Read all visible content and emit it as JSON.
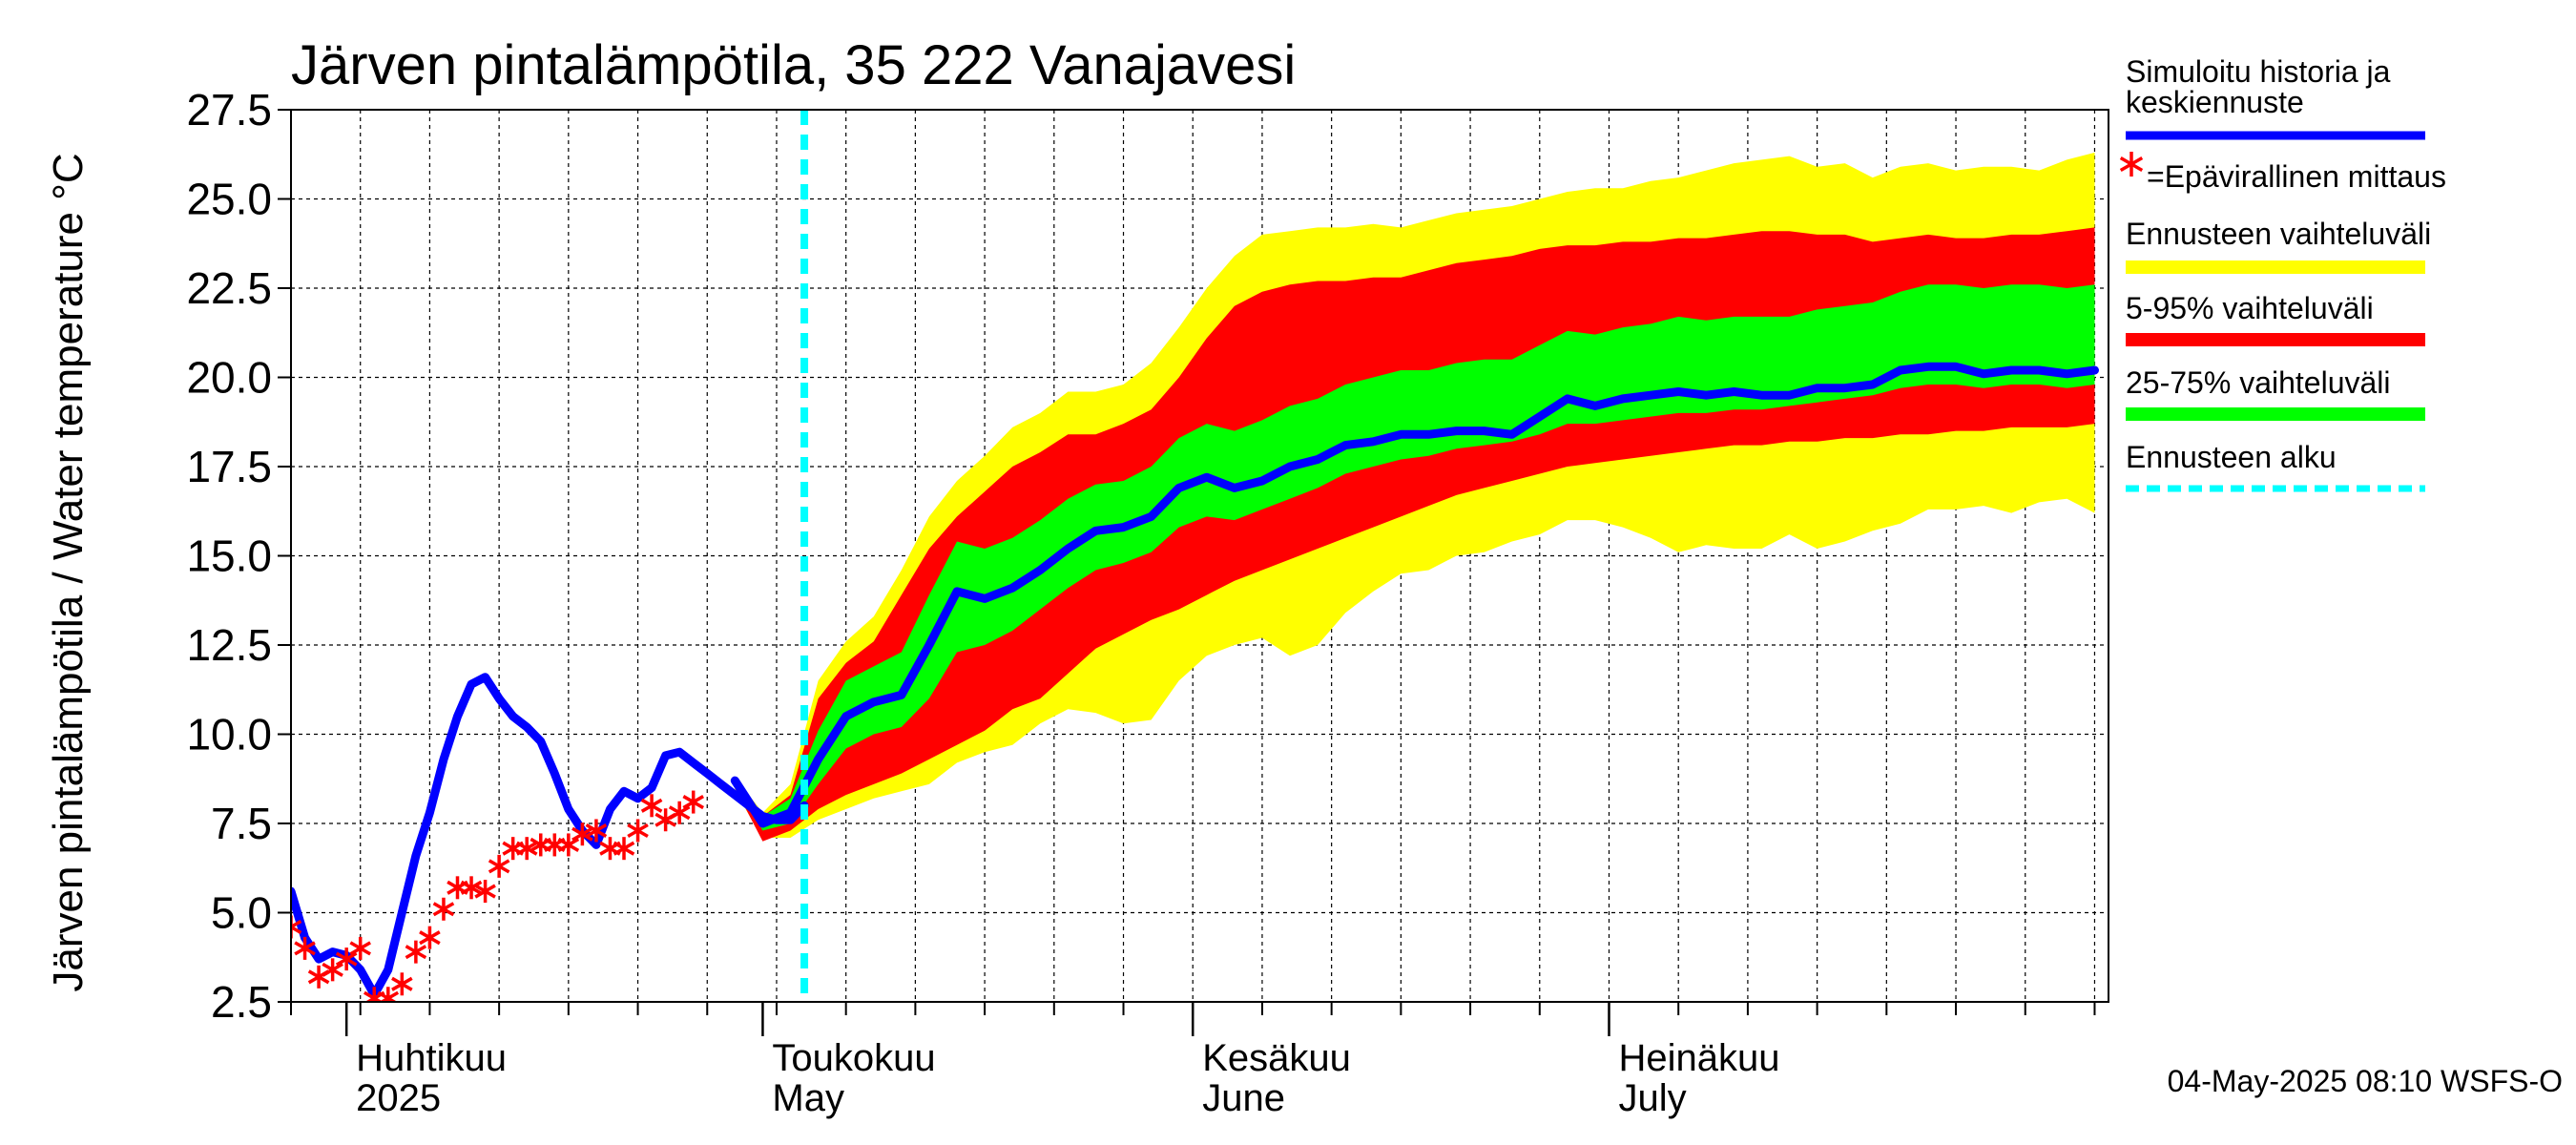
{
  "chart_data": {
    "type": "line",
    "title": "Järven pintalämpötila, 35 222 Vanajavesi",
    "ylabel": "Järven pintalämpötila / Water temperature °C",
    "ylim": [
      2.5,
      27.5
    ],
    "yticks": [
      "2.5",
      "5.0",
      "7.5",
      "10.0",
      "12.5",
      "15.0",
      "17.5",
      "20.0",
      "22.5",
      "25.0",
      "27.5"
    ],
    "xlim": [
      "2025-03-28",
      "2025-08-06"
    ],
    "grid": true,
    "forecast_start": "2025-05-04",
    "month_labels": [
      {
        "line1": "Huhtikuu",
        "line2": "2025",
        "date": "2025-04-01"
      },
      {
        "line1": "Toukokuu",
        "line2": "May",
        "date": "2025-05-01"
      },
      {
        "line1": "Kesäkuu",
        "line2": "June",
        "date": "2025-06-01"
      },
      {
        "line1": "Heinäkuu",
        "line2": "July",
        "date": "2025-07-01"
      }
    ],
    "legend": [
      {
        "label": "Simuloitu historia ja",
        "label2": "keskiennuste",
        "color": "#0000ff",
        "kind": "line"
      },
      {
        "label": "=Epävirallinen mittaus",
        "color": "#ff0000",
        "kind": "marker"
      },
      {
        "label": "Ennusteen vaihteluväli",
        "color": "#ffff00",
        "kind": "band"
      },
      {
        "label": "5-95% vaihteluväli",
        "color": "#ff0000",
        "kind": "band"
      },
      {
        "label": "25-75% vaihteluväli",
        "color": "#00ff00",
        "kind": "band"
      },
      {
        "label": "Ennusteen alku",
        "color": "#00ffff",
        "kind": "dashed"
      }
    ],
    "footer": "04-May-2025 08:10 WSFS-O",
    "colors": {
      "simulated": "#0000ff",
      "observed": "#ff0000",
      "full_range": "#ffff00",
      "p5_95": "#ff0000",
      "p25_75": "#00ff00",
      "forecast_start": "#00ffff",
      "grid": "#000000"
    },
    "series": {
      "simulated": {
        "x": [
          "2025-03-28",
          "2025-03-29",
          "2025-03-30",
          "2025-03-31",
          "2025-04-01",
          "2025-04-02",
          "2025-04-03",
          "2025-04-04",
          "2025-04-05",
          "2025-04-06",
          "2025-04-07",
          "2025-04-08",
          "2025-04-09",
          "2025-04-10",
          "2025-04-11",
          "2025-04-12",
          "2025-04-13",
          "2025-04-14",
          "2025-04-15",
          "2025-04-16",
          "2025-04-17",
          "2025-04-18",
          "2025-04-19",
          "2025-04-20",
          "2025-04-21",
          "2025-04-22",
          "2025-04-23",
          "2025-04-24",
          "2025-04-25",
          "2025-04-26",
          "2025-04-27",
          "2025-04-28",
          "2025-04-29",
          "2025-04-30",
          "2025-05-01",
          "2025-05-02",
          "2025-05-03",
          "2025-05-04"
        ],
        "y": [
          5.6,
          4.3,
          3.7,
          3.9,
          3.8,
          3.4,
          2.7,
          3.4,
          5.0,
          6.6,
          7.8,
          9.3,
          10.5,
          11.4,
          11.6,
          11.0,
          10.5,
          10.2,
          9.8,
          8.9,
          7.9,
          7.3,
          6.9,
          7.9,
          8.4,
          8.2,
          8.5,
          9.4,
          9.5,
          9.2,
          8.9,
          8.6,
          8.3,
          8.0,
          7.7,
          7.6,
          7.6,
          8.0
        ]
      },
      "observed": {
        "x": [
          "2025-03-28",
          "2025-03-29",
          "2025-03-30",
          "2025-03-31",
          "2025-04-01",
          "2025-04-02",
          "2025-04-03",
          "2025-04-04",
          "2025-04-05",
          "2025-04-06",
          "2025-04-07",
          "2025-04-08",
          "2025-04-09",
          "2025-04-10",
          "2025-04-11",
          "2025-04-12",
          "2025-04-13",
          "2025-04-14",
          "2025-04-15",
          "2025-04-16",
          "2025-04-17",
          "2025-04-18",
          "2025-04-19",
          "2025-04-20",
          "2025-04-21",
          "2025-04-22",
          "2025-04-23",
          "2025-04-24",
          "2025-04-25",
          "2025-04-26"
        ],
        "y": [
          4.6,
          4.0,
          3.2,
          3.4,
          3.7,
          4.0,
          2.6,
          2.6,
          3.0,
          3.9,
          4.3,
          5.1,
          5.7,
          5.7,
          5.6,
          6.3,
          6.8,
          6.8,
          6.9,
          6.9,
          6.9,
          7.2,
          7.3,
          6.8,
          6.8,
          7.3,
          8.0,
          7.6,
          7.8,
          8.1
        ]
      },
      "forecast_mean": {
        "x": [
          "2025-04-29",
          "2025-05-01",
          "2025-05-03",
          "2025-05-05",
          "2025-05-07",
          "2025-05-09",
          "2025-05-11",
          "2025-05-13",
          "2025-05-15",
          "2025-05-17",
          "2025-05-19",
          "2025-05-21",
          "2025-05-23",
          "2025-05-25",
          "2025-05-27",
          "2025-05-29",
          "2025-05-31",
          "2025-06-02",
          "2025-06-04",
          "2025-06-06",
          "2025-06-08",
          "2025-06-10",
          "2025-06-12",
          "2025-06-14",
          "2025-06-16",
          "2025-06-18",
          "2025-06-20",
          "2025-06-22",
          "2025-06-24",
          "2025-06-26",
          "2025-06-28",
          "2025-06-30",
          "2025-07-02",
          "2025-07-04",
          "2025-07-06",
          "2025-07-08",
          "2025-07-10",
          "2025-07-12",
          "2025-07-14",
          "2025-07-16",
          "2025-07-18",
          "2025-07-20",
          "2025-07-22",
          "2025-07-24",
          "2025-07-26",
          "2025-07-28",
          "2025-07-30",
          "2025-08-01",
          "2025-08-03",
          "2025-08-05"
        ],
        "y": [
          8.7,
          7.5,
          7.8,
          9.3,
          10.5,
          10.9,
          11.1,
          12.5,
          14.0,
          13.8,
          14.1,
          14.6,
          15.2,
          15.7,
          15.8,
          16.1,
          16.9,
          17.2,
          16.9,
          17.1,
          17.5,
          17.7,
          18.1,
          18.2,
          18.4,
          18.4,
          18.5,
          18.5,
          18.4,
          18.9,
          19.4,
          19.2,
          19.4,
          19.5,
          19.6,
          19.5,
          19.6,
          19.5,
          19.5,
          19.7,
          19.7,
          19.8,
          20.2,
          20.3,
          20.3,
          20.1,
          20.2,
          20.2,
          20.1,
          20.2
        ]
      },
      "band_full": {
        "x": [
          "2025-04-29",
          "2025-05-01",
          "2025-05-03",
          "2025-05-05",
          "2025-05-07",
          "2025-05-09",
          "2025-05-11",
          "2025-05-13",
          "2025-05-15",
          "2025-05-17",
          "2025-05-19",
          "2025-05-21",
          "2025-05-23",
          "2025-05-25",
          "2025-05-27",
          "2025-05-29",
          "2025-05-31",
          "2025-06-02",
          "2025-06-04",
          "2025-06-06",
          "2025-06-08",
          "2025-06-10",
          "2025-06-12",
          "2025-06-14",
          "2025-06-16",
          "2025-06-18",
          "2025-06-20",
          "2025-06-22",
          "2025-06-24",
          "2025-06-26",
          "2025-06-28",
          "2025-06-30",
          "2025-07-02",
          "2025-07-04",
          "2025-07-06",
          "2025-07-08",
          "2025-07-10",
          "2025-07-12",
          "2025-07-14",
          "2025-07-16",
          "2025-07-18",
          "2025-07-20",
          "2025-07-22",
          "2025-07-24",
          "2025-07-26",
          "2025-07-28",
          "2025-07-30",
          "2025-08-01",
          "2025-08-03",
          "2025-08-05"
        ],
        "low": [
          8.4,
          7.1,
          7.1,
          7.6,
          7.9,
          8.2,
          8.4,
          8.6,
          9.2,
          9.5,
          9.7,
          10.3,
          10.7,
          10.6,
          10.3,
          10.4,
          11.5,
          12.2,
          12.5,
          12.7,
          12.2,
          12.5,
          13.4,
          14.0,
          14.5,
          14.6,
          15.0,
          15.1,
          15.4,
          15.6,
          16.0,
          16.0,
          15.8,
          15.5,
          15.1,
          15.3,
          15.2,
          15.2,
          15.6,
          15.2,
          15.4,
          15.7,
          15.9,
          16.3,
          16.3,
          16.4,
          16.2,
          16.5,
          16.6,
          16.2
        ],
        "high": [
          8.8,
          7.8,
          8.6,
          11.5,
          12.6,
          13.3,
          14.6,
          16.1,
          17.1,
          17.8,
          18.6,
          19.0,
          19.6,
          19.6,
          19.8,
          20.4,
          21.4,
          22.5,
          23.4,
          24.0,
          24.1,
          24.2,
          24.2,
          24.3,
          24.2,
          24.4,
          24.6,
          24.7,
          24.8,
          25.0,
          25.2,
          25.3,
          25.3,
          25.5,
          25.6,
          25.8,
          26.0,
          26.1,
          26.2,
          25.9,
          26.0,
          25.6,
          25.9,
          26.0,
          25.8,
          25.9,
          25.9,
          25.8,
          26.1,
          26.3
        ]
      },
      "band_5_95": {
        "x": [
          "2025-04-29",
          "2025-05-01",
          "2025-05-03",
          "2025-05-05",
          "2025-05-07",
          "2025-05-09",
          "2025-05-11",
          "2025-05-13",
          "2025-05-15",
          "2025-05-17",
          "2025-05-19",
          "2025-05-21",
          "2025-05-23",
          "2025-05-25",
          "2025-05-27",
          "2025-05-29",
          "2025-05-31",
          "2025-06-02",
          "2025-06-04",
          "2025-06-06",
          "2025-06-08",
          "2025-06-10",
          "2025-06-12",
          "2025-06-14",
          "2025-06-16",
          "2025-06-18",
          "2025-06-20",
          "2025-06-22",
          "2025-06-24",
          "2025-06-26",
          "2025-06-28",
          "2025-06-30",
          "2025-07-02",
          "2025-07-04",
          "2025-07-06",
          "2025-07-08",
          "2025-07-10",
          "2025-07-12",
          "2025-07-14",
          "2025-07-16",
          "2025-07-18",
          "2025-07-20",
          "2025-07-22",
          "2025-07-24",
          "2025-07-26",
          "2025-07-28",
          "2025-07-30",
          "2025-08-01",
          "2025-08-03",
          "2025-08-05"
        ],
        "low": [
          8.5,
          7.0,
          7.3,
          7.9,
          8.3,
          8.6,
          8.9,
          9.3,
          9.7,
          10.1,
          10.7,
          11.0,
          11.7,
          12.4,
          12.8,
          13.2,
          13.5,
          13.9,
          14.3,
          14.6,
          14.9,
          15.2,
          15.5,
          15.8,
          16.1,
          16.4,
          16.7,
          16.9,
          17.1,
          17.3,
          17.5,
          17.6,
          17.7,
          17.8,
          17.9,
          18.0,
          18.1,
          18.1,
          18.2,
          18.2,
          18.3,
          18.3,
          18.4,
          18.4,
          18.5,
          18.5,
          18.6,
          18.6,
          18.6,
          18.7
        ],
        "high": [
          8.8,
          7.7,
          8.3,
          11.0,
          12.0,
          12.6,
          13.9,
          15.2,
          16.1,
          16.8,
          17.5,
          17.9,
          18.4,
          18.4,
          18.7,
          19.1,
          20.0,
          21.1,
          22.0,
          22.4,
          22.6,
          22.7,
          22.7,
          22.8,
          22.8,
          23.0,
          23.2,
          23.3,
          23.4,
          23.6,
          23.7,
          23.7,
          23.8,
          23.8,
          23.9,
          23.9,
          24.0,
          24.1,
          24.1,
          24.0,
          24.0,
          23.8,
          23.9,
          24.0,
          23.9,
          23.9,
          24.0,
          24.0,
          24.1,
          24.2
        ]
      },
      "band_25_75": {
        "x": [
          "2025-04-29",
          "2025-05-01",
          "2025-05-03",
          "2025-05-05",
          "2025-05-07",
          "2025-05-09",
          "2025-05-11",
          "2025-05-13",
          "2025-05-15",
          "2025-05-17",
          "2025-05-19",
          "2025-05-21",
          "2025-05-23",
          "2025-05-25",
          "2025-05-27",
          "2025-05-29",
          "2025-05-31",
          "2025-06-02",
          "2025-06-04",
          "2025-06-06",
          "2025-06-08",
          "2025-06-10",
          "2025-06-12",
          "2025-06-14",
          "2025-06-16",
          "2025-06-18",
          "2025-06-20",
          "2025-06-22",
          "2025-06-24",
          "2025-06-26",
          "2025-06-28",
          "2025-06-30",
          "2025-07-02",
          "2025-07-04",
          "2025-07-06",
          "2025-07-08",
          "2025-07-10",
          "2025-07-12",
          "2025-07-14",
          "2025-07-16",
          "2025-07-18",
          "2025-07-20",
          "2025-07-22",
          "2025-07-24",
          "2025-07-26",
          "2025-07-28",
          "2025-07-30",
          "2025-08-01",
          "2025-08-03",
          "2025-08-05"
        ],
        "low": [
          8.6,
          7.3,
          7.5,
          8.6,
          9.6,
          10.0,
          10.2,
          11.0,
          12.3,
          12.5,
          12.9,
          13.5,
          14.1,
          14.6,
          14.8,
          15.1,
          15.8,
          16.1,
          16.0,
          16.3,
          16.6,
          16.9,
          17.3,
          17.5,
          17.7,
          17.8,
          18.0,
          18.1,
          18.2,
          18.4,
          18.7,
          18.7,
          18.8,
          18.9,
          19.0,
          19.0,
          19.1,
          19.1,
          19.2,
          19.3,
          19.4,
          19.5,
          19.7,
          19.8,
          19.8,
          19.7,
          19.8,
          19.8,
          19.7,
          19.8
        ],
        "high": [
          8.8,
          7.7,
          8.2,
          10.1,
          11.5,
          11.9,
          12.3,
          13.9,
          15.4,
          15.2,
          15.5,
          16.0,
          16.6,
          17.0,
          17.1,
          17.5,
          18.3,
          18.7,
          18.5,
          18.8,
          19.2,
          19.4,
          19.8,
          20.0,
          20.2,
          20.2,
          20.4,
          20.5,
          20.5,
          20.9,
          21.3,
          21.2,
          21.4,
          21.5,
          21.7,
          21.6,
          21.7,
          21.7,
          21.7,
          21.9,
          22.0,
          22.1,
          22.4,
          22.6,
          22.6,
          22.5,
          22.6,
          22.6,
          22.5,
          22.6
        ]
      }
    }
  }
}
